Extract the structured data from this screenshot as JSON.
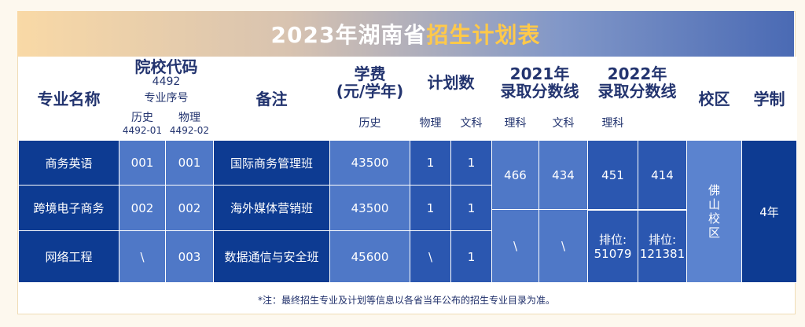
{
  "title": {
    "prefix": "2023年湖南省",
    "highlight": "招生计划表"
  },
  "headers": {
    "major": "专业名称",
    "school_code_label": "院校代码",
    "school_code_value": "4492",
    "major_seq_label": "专业序号",
    "history": "历史",
    "history_code": "4492-01",
    "physics": "物理",
    "physics_code": "4492-02",
    "note": "备注",
    "fee_line1": "学费",
    "fee_line2": "(元/学年)",
    "plan": "计划数",
    "plan_history": "历史",
    "plan_physics": "物理",
    "y2021_line1": "2021年",
    "y2021_line2": "录取分数线",
    "y2021_arts": "文科",
    "y2021_science": "理科",
    "y2022_line1": "2022年",
    "y2022_line2": "录取分数线",
    "y2022_arts": "文科",
    "y2022_science": "理科",
    "campus": "校区",
    "duration": "学制"
  },
  "rows": [
    {
      "major": "商务英语",
      "hist_seq": "001",
      "phys_seq": "001",
      "note": "国际商务管理班",
      "fee": "43500",
      "plan_hist": "1",
      "plan_phys": "1"
    },
    {
      "major": "跨境电子商务",
      "hist_seq": "002",
      "phys_seq": "002",
      "note": "海外媒体营销班",
      "fee": "43500",
      "plan_hist": "1",
      "plan_phys": "1"
    },
    {
      "major": "网络工程",
      "hist_seq": "\\",
      "phys_seq": "003",
      "note": "数据通信与安全班",
      "fee": "45600",
      "plan_hist": "\\",
      "plan_phys": "1"
    }
  ],
  "scores": {
    "y2021_arts_top": "466",
    "y2021_science_top": "434",
    "y2021_arts_bottom": "\\",
    "y2021_science_bottom": "\\",
    "y2022_arts_top": "451",
    "y2022_science_top": "414",
    "y2022_rank_label_arts": "排位:",
    "y2022_rank_value_arts": "51079",
    "y2022_rank_label_science": "排位:",
    "y2022_rank_value_science": "121381"
  },
  "campus_chars": [
    "佛",
    "山",
    "校",
    "区"
  ],
  "duration_value": "4年",
  "footnote": "*注：最终招生专业及计划等信息以各省当年公布的招生专业目录为准。",
  "colors": {
    "dark": "#0d3b92",
    "mid": "#2b57b0",
    "light": "#4f78c7",
    "highlight": "#ffc94a"
  }
}
